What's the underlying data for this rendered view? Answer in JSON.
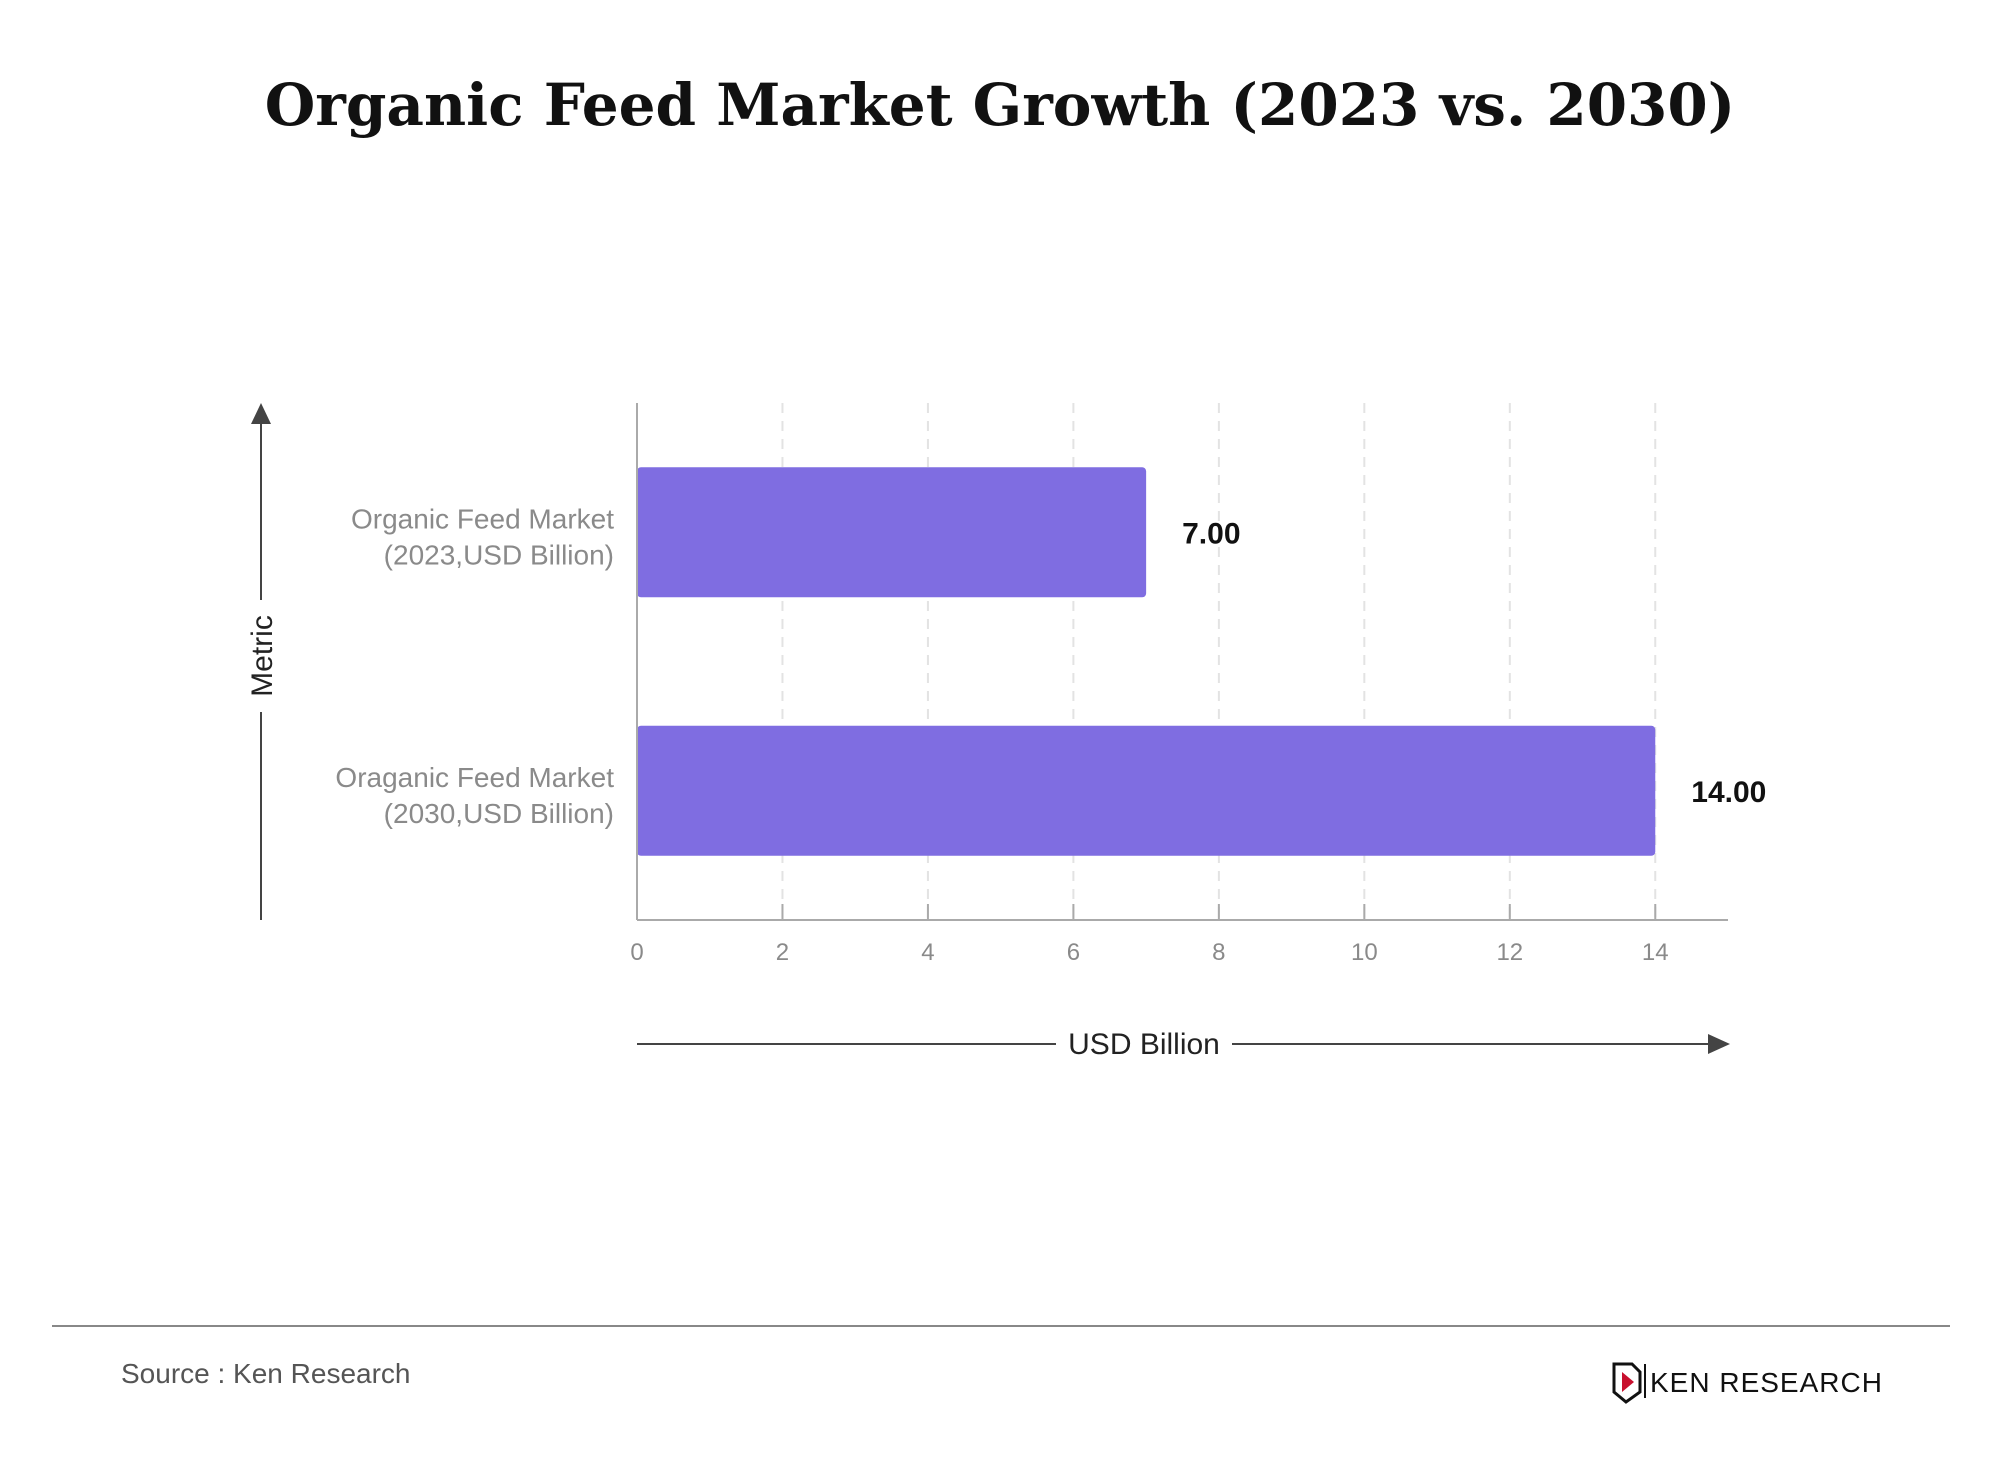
{
  "chart_data": {
    "type": "bar",
    "orientation": "horizontal",
    "title": "Organic Feed Market Growth (2023 vs. 2030)",
    "categories": [
      [
        "Organic Feed Market",
        "(2023,USD Billion)"
      ],
      [
        "Oraganic Feed Market",
        "(2030,USD Billion)"
      ]
    ],
    "values": [
      7.0,
      14.0
    ],
    "value_labels": [
      "7.00",
      "14.00"
    ],
    "xlabel": "USD Billion",
    "ylabel": "Metric",
    "xlim": [
      0,
      15
    ],
    "xticks": [
      0,
      2,
      4,
      6,
      8,
      10,
      12,
      14
    ],
    "grid": "vertical dashed",
    "bar_color": "#7f6de1"
  },
  "footer": {
    "source": "Source : Ken Research",
    "brand": "KEN RESEARCH",
    "brand_accent": "#c8102e"
  }
}
